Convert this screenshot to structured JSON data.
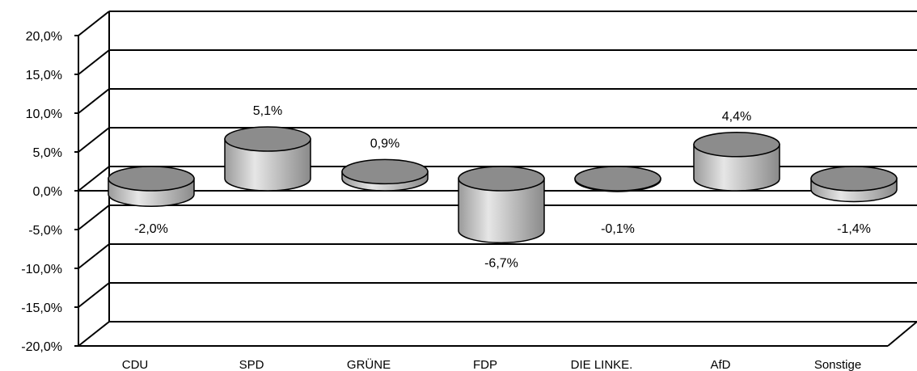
{
  "chart_data": {
    "type": "bar",
    "categories": [
      "CDU",
      "SPD",
      "GRÜNE",
      "FDP",
      "DIE LINKE.",
      "AfD",
      "Sonstige"
    ],
    "values": [
      -2.0,
      5.1,
      0.9,
      -6.7,
      -0.1,
      4.4,
      -1.4
    ],
    "value_labels": [
      "-2,0%",
      "5,1%",
      "0,9%",
      "-6,7%",
      "-0,1%",
      "4,4%",
      "-1,4%"
    ],
    "y_ticks": [
      "20,0%",
      "15,0%",
      "10,0%",
      "5,0%",
      "0,0%",
      "-5,0%",
      "-10,0%",
      "-15,0%",
      "-20,0%"
    ],
    "ylim": [
      -20,
      20
    ],
    "grid": true,
    "bar_style": "3d-cylinder",
    "colors": {
      "bar": "#b3b3b3",
      "bar_top": "#8c8c8c",
      "grid": "#000000",
      "background": "#ffffff"
    }
  }
}
